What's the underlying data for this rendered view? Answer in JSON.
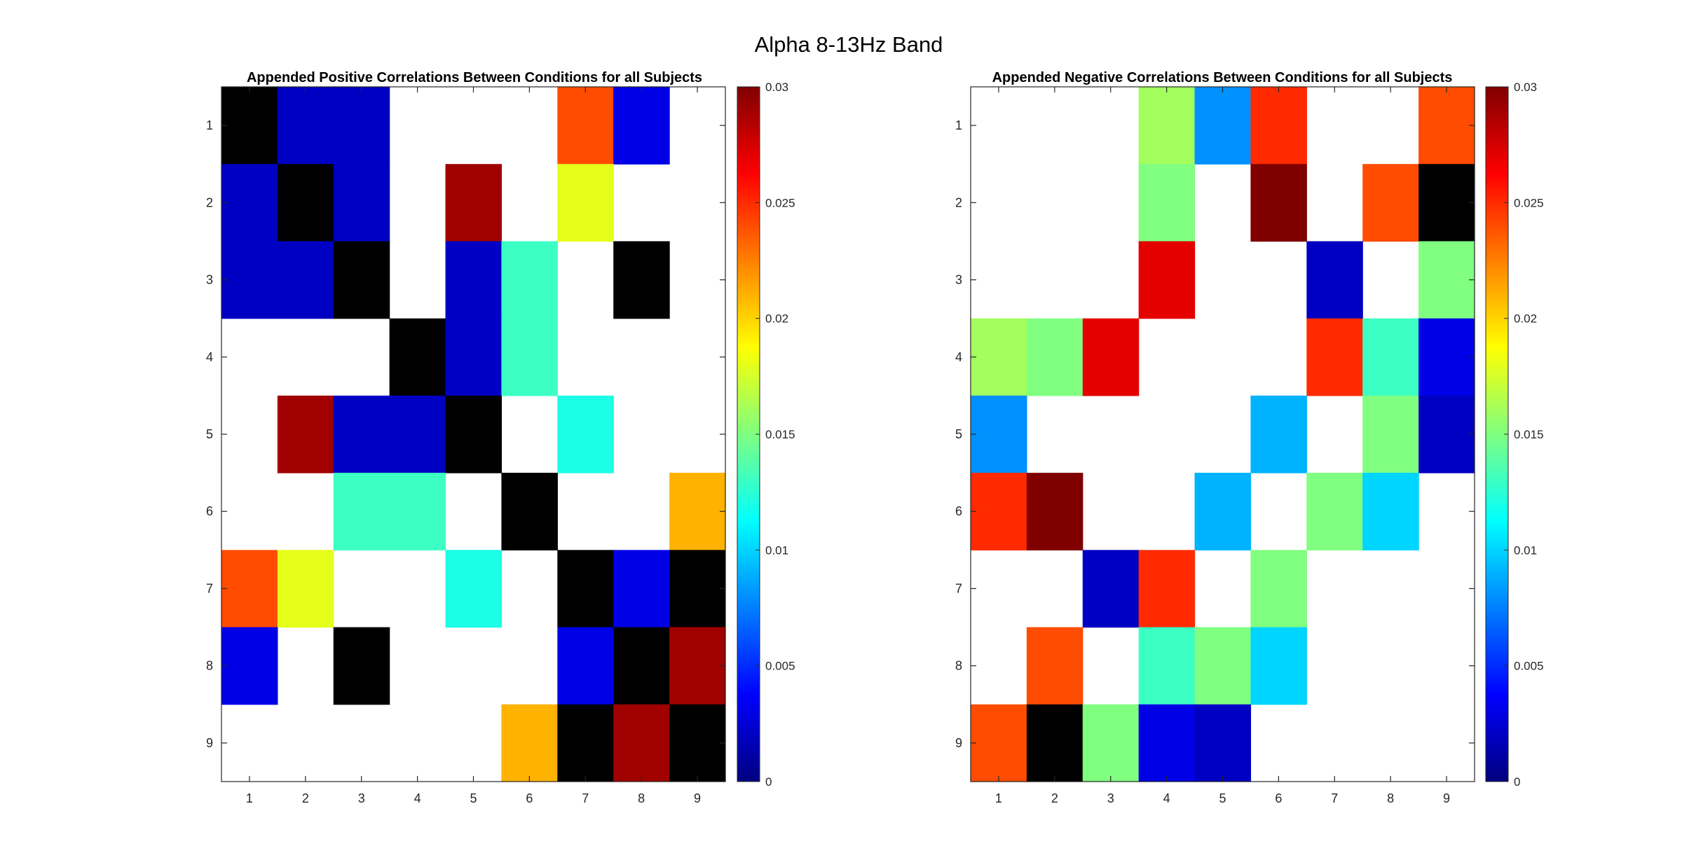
{
  "figure": {
    "title": "Alpha 8-13Hz Band"
  },
  "chart_data": [
    {
      "type": "heatmap",
      "title": "Appended Positive Correlations Between Conditions for all Subjects",
      "x_ticks": [
        "1",
        "2",
        "3",
        "4",
        "5",
        "6",
        "7",
        "8",
        "9"
      ],
      "y_ticks": [
        "1",
        "2",
        "3",
        "4",
        "5",
        "6",
        "7",
        "8",
        "9"
      ],
      "colormap": "jet",
      "clim": [
        0,
        0.03
      ],
      "colorbar_ticks": [
        "0",
        "0.005",
        "0.01",
        "0.015",
        "0.02",
        "0.025",
        "0.03"
      ],
      "nan_color": "#ffffff",
      "black_cells_note": "diagonal / zero-coded cells rendered black",
      "values": [
        [
          "K",
          0.002,
          0.002,
          null,
          null,
          null,
          0.024,
          0.003,
          null
        ],
        [
          0.002,
          "K",
          0.002,
          null,
          0.029,
          null,
          0.018,
          null,
          null
        ],
        [
          0.002,
          0.002,
          "K",
          null,
          0.002,
          0.013,
          null,
          "K",
          null
        ],
        [
          null,
          null,
          null,
          "K",
          0.002,
          0.013,
          null,
          null,
          null
        ],
        [
          null,
          0.029,
          0.002,
          0.002,
          "K",
          null,
          0.012,
          null,
          null
        ],
        [
          null,
          null,
          0.013,
          0.013,
          null,
          "K",
          null,
          null,
          0.021
        ],
        [
          0.024,
          0.018,
          null,
          null,
          0.012,
          null,
          "K",
          0.003,
          "K"
        ],
        [
          0.003,
          null,
          "K",
          null,
          null,
          null,
          0.003,
          "K",
          0.029
        ],
        [
          null,
          null,
          null,
          null,
          null,
          0.021,
          "K",
          0.029,
          "K"
        ]
      ]
    },
    {
      "type": "heatmap",
      "title": "Appended Negative Correlations Between Conditions for all Subjects",
      "x_ticks": [
        "1",
        "2",
        "3",
        "4",
        "5",
        "6",
        "7",
        "8",
        "9"
      ],
      "y_ticks": [
        "1",
        "2",
        "3",
        "4",
        "5",
        "6",
        "7",
        "8",
        "9"
      ],
      "colormap": "jet",
      "clim": [
        0,
        0.03
      ],
      "colorbar_ticks": [
        "0",
        "0.005",
        "0.01",
        "0.015",
        "0.02",
        "0.025",
        "0.03"
      ],
      "nan_color": "#ffffff",
      "values": [
        [
          null,
          null,
          null,
          0.016,
          0.008,
          0.025,
          null,
          null,
          0.024
        ],
        [
          null,
          null,
          null,
          0.015,
          null,
          0.031,
          null,
          0.024,
          "K"
        ],
        [
          null,
          null,
          null,
          0.027,
          null,
          null,
          0.002,
          null,
          0.015
        ],
        [
          0.016,
          0.015,
          0.027,
          null,
          null,
          null,
          0.025,
          0.013,
          0.003
        ],
        [
          0.008,
          null,
          null,
          null,
          null,
          0.009,
          null,
          0.015,
          0.002
        ],
        [
          0.025,
          0.031,
          null,
          null,
          0.009,
          null,
          0.015,
          0.01,
          null
        ],
        [
          null,
          null,
          0.002,
          0.025,
          null,
          0.015,
          null,
          null,
          null
        ],
        [
          null,
          0.024,
          null,
          0.013,
          0.015,
          0.01,
          null,
          null,
          null
        ],
        [
          0.024,
          "K",
          0.015,
          0.003,
          0.002,
          null,
          null,
          null,
          null
        ]
      ]
    }
  ]
}
